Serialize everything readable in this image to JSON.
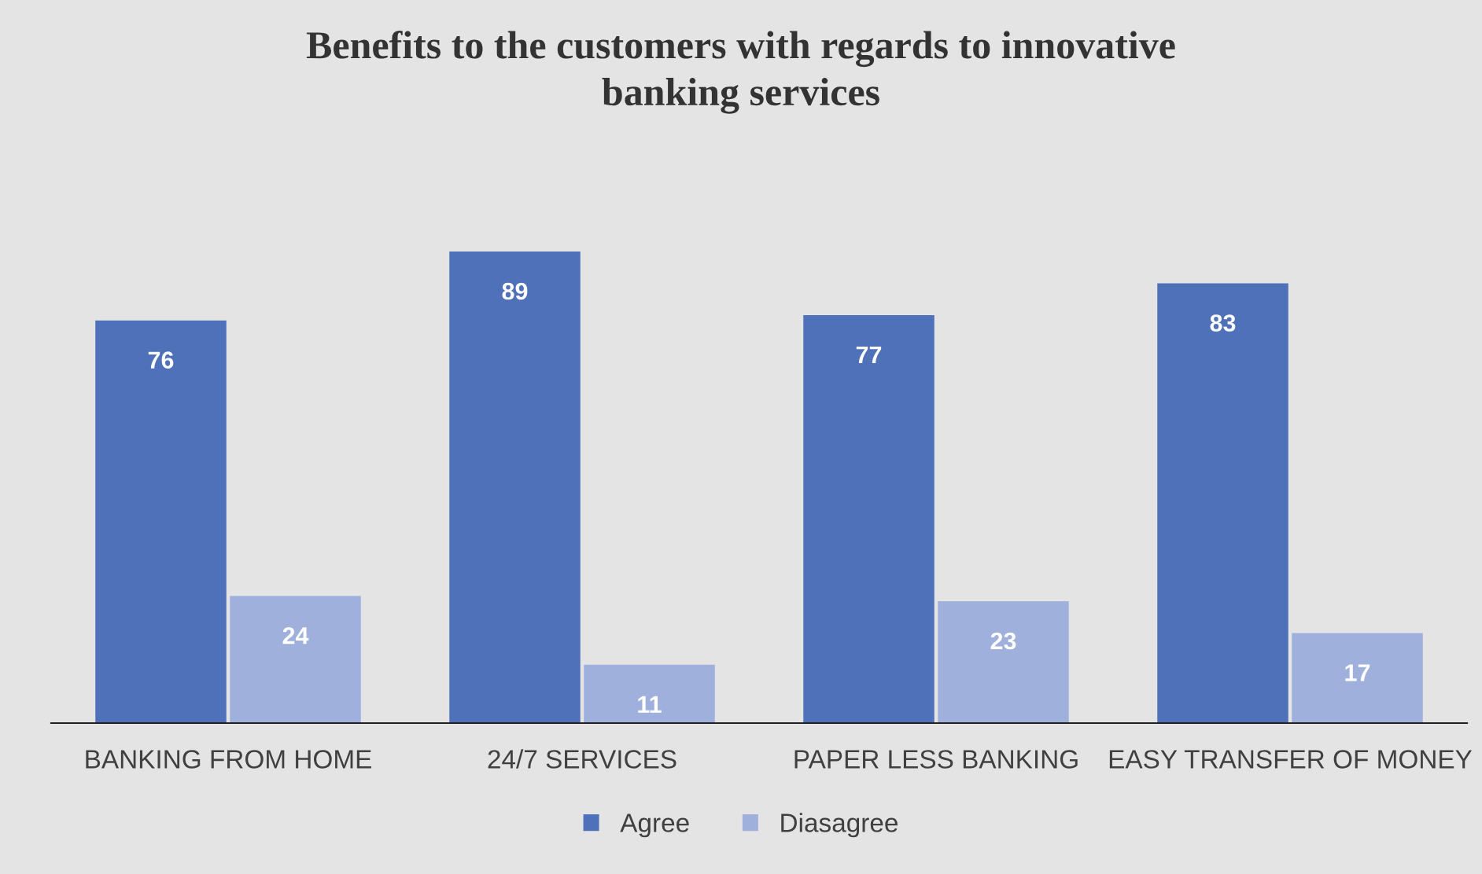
{
  "chart_data": {
    "type": "bar",
    "title": "Benefits to the customers with regards to innovative\nbanking services",
    "categories": [
      "BANKING FROM HOME",
      "24/7 SERVICES",
      "PAPER LESS BANKING",
      "EASY TRANSFER OF MONEY"
    ],
    "series": [
      {
        "name": "Agree",
        "color": "#4f71b9",
        "values": [
          76,
          89,
          77,
          83
        ]
      },
      {
        "name": "Diasagree",
        "color": "#9fb0dc",
        "values": [
          24,
          11,
          23,
          17
        ]
      }
    ],
    "data_labels": true,
    "legend": "bottom",
    "grid": false
  }
}
